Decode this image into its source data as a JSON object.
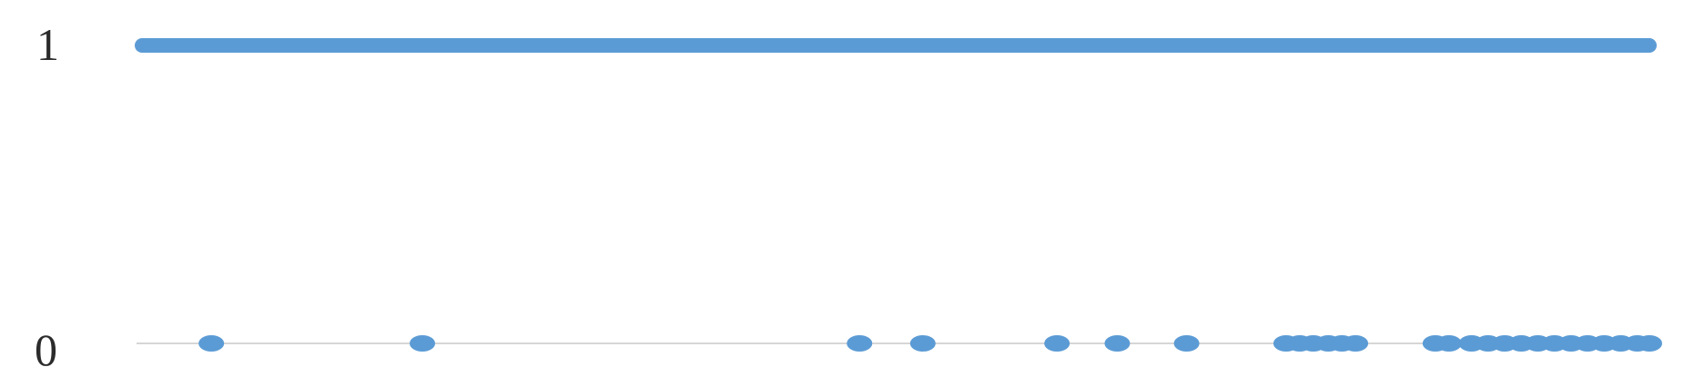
{
  "chart_data": {
    "type": "scatter",
    "title": "",
    "xlabel": "",
    "ylabel": "",
    "ylim": [
      0,
      1
    ],
    "y_ticks": [
      "0",
      "1"
    ],
    "grid": false,
    "legend": "none",
    "color": "#5b9bd5",
    "series": [
      {
        "values_y1_x_range": [
          0.0,
          1.0
        ],
        "x_y0": [
          0.046,
          0.186,
          0.476,
          0.518,
          0.607,
          0.647,
          0.693,
          0.759,
          0.768,
          0.777,
          0.787,
          0.796,
          0.805,
          0.858,
          0.867,
          0.882,
          0.893,
          0.904,
          0.915,
          0.926,
          0.937,
          0.948,
          0.959,
          0.97,
          0.981,
          0.992,
          1.0
        ]
      }
    ]
  }
}
